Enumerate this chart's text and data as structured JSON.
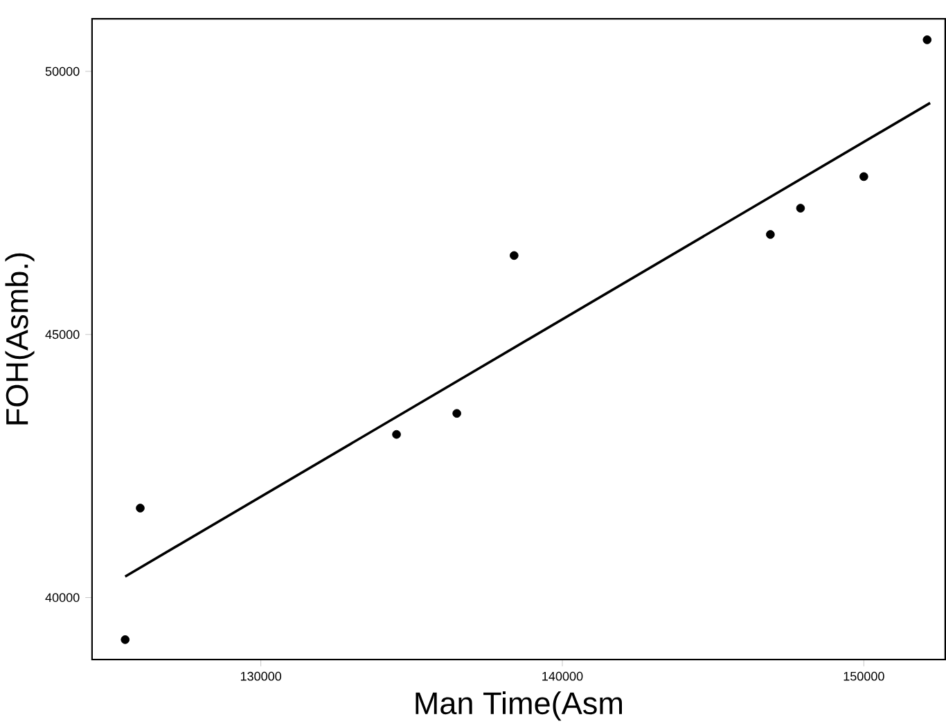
{
  "chart_data": {
    "type": "scatter",
    "xlabel": "Man Time(Asm",
    "ylabel": "FOH(Asmb.)",
    "xlim": [
      124400,
      152700
    ],
    "ylim": [
      38820,
      51000
    ],
    "xticks": [
      130000,
      140000,
      150000
    ],
    "yticks": [
      40000,
      45000,
      50000
    ],
    "grid": false,
    "marker": "circle",
    "series": [
      {
        "color": "#000000",
        "x": [
          125500,
          126000,
          134500,
          136500,
          138400,
          146900,
          147900,
          150000,
          152100
        ],
        "values": [
          39200,
          41700,
          43100,
          43500,
          46500,
          46900,
          47400,
          48000,
          50600
        ]
      },
      {
        "type": "line",
        "color": "#000000",
        "marker": "none",
        "line_style": "solid",
        "x": [
          125500,
          152200
        ],
        "values": [
          40400,
          49400
        ]
      }
    ]
  }
}
